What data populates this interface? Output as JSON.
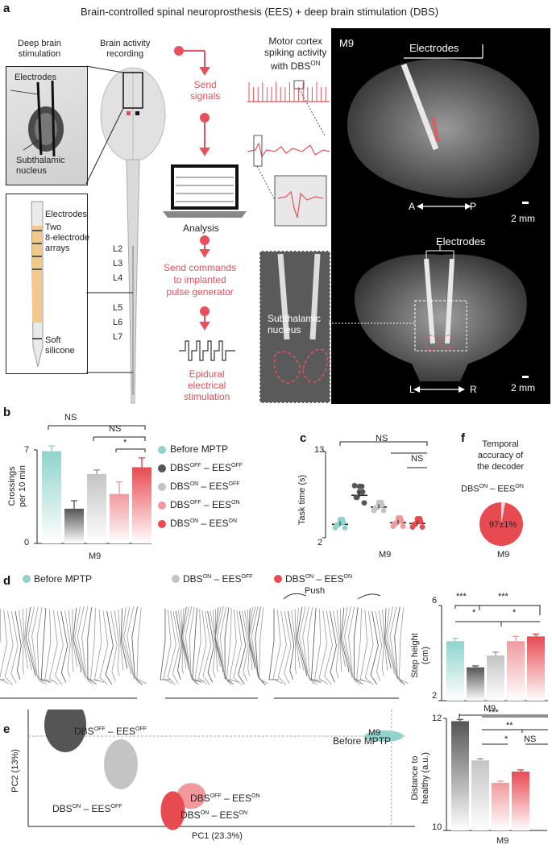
{
  "title": "Brain-controlled spinal neuroprosthesis (EES) + deep brain stimulation (DBS)",
  "panel_a": {
    "letter": "a",
    "dbs_title": [
      "Deep brain",
      "stimulation"
    ],
    "recording_title": [
      "Brain activity",
      "recording"
    ],
    "dbs_labels": {
      "electrodes": "Electrodes",
      "stn": [
        "Subthalamic",
        "nucleus"
      ]
    },
    "array_labels": {
      "electrodes": "Electrodes",
      "two_arrays": [
        "Two",
        "8-electrode",
        "arrays"
      ],
      "silicone": [
        "Soft",
        "silicone"
      ]
    },
    "spinal_levels": [
      "L2",
      "L3",
      "L4",
      "L5",
      "L6",
      "L7"
    ],
    "flow": {
      "send_signals": [
        "Send",
        "signals"
      ],
      "analysis": "Analysis",
      "send_commands": [
        "Send commands",
        "to implanted",
        "pulse generator"
      ],
      "epidural": [
        "Epidural",
        "electrical",
        "stimulation"
      ]
    },
    "spiking_title": [
      "Motor cortex",
      "spiking activity",
      "with DBS"
    ],
    "spiking_sup": "ON",
    "mri": {
      "monkey": "M9",
      "electrodes_top": "Electrodes",
      "ap_a": "A",
      "ap_p": "P",
      "scale_top": "2 mm",
      "electrodes_bottom": "Electrodes",
      "stn_zoom": [
        "Subthalamic",
        "nucleus"
      ],
      "lr_l": "L",
      "lr_r": "R",
      "scale_bottom": "2 mm"
    }
  },
  "panel_b": {
    "letter": "b",
    "ylabel": [
      "Crossings",
      "per 10 min"
    ],
    "yticks": [
      "7",
      "0"
    ],
    "xlabel": "M9",
    "sig": [
      "NS",
      "NS",
      "*"
    ],
    "legend": [
      {
        "pre": "Before MPTP",
        "color": "#8fd3cc"
      },
      {
        "pre": "DBS",
        "s1": "OFF",
        "mid": " – EES",
        "s2": "OFF",
        "color": "#555555"
      },
      {
        "pre": "DBS",
        "s1": "ON",
        "mid": " – EES",
        "s2": "OFF",
        "color": "#c4c4c4"
      },
      {
        "pre": "DBS",
        "s1": "OFF",
        "mid": " – EES",
        "s2": "ON",
        "color": "#f09a9e"
      },
      {
        "pre": "DBS",
        "s1": "ON",
        "mid": " – EES",
        "s2": "ON",
        "color": "#e84a52"
      }
    ]
  },
  "panel_c": {
    "letter": "c",
    "ylabel": "Task time (s)",
    "yticks": [
      "13",
      "2"
    ],
    "xlabel": "M9",
    "sig": [
      "NS",
      "NS"
    ]
  },
  "panel_f": {
    "letter": "f",
    "title": [
      "Temporal",
      "accuracy of",
      "the decoder"
    ],
    "cond": {
      "pre": "DBS",
      "s1": "ON",
      "mid": " – EES",
      "s2": "ON"
    },
    "value_text": "97±1%",
    "xlabel": "M9"
  },
  "panel_d": {
    "letter": "d",
    "legend1": "Before MPTP",
    "legend2": {
      "pre": "DBS",
      "s1": "ON",
      "mid": " – EES",
      "s2": "OFF"
    },
    "legend3": {
      "pre": "DBS",
      "s1": "ON",
      "mid": " – EES",
      "s2": "ON"
    },
    "push": "Push",
    "ylabel": [
      "Step height",
      "(cm)"
    ],
    "yticks": [
      "6",
      "2"
    ],
    "xlabel": "M9",
    "sig": [
      "***",
      "***",
      "*",
      "*"
    ]
  },
  "panel_e": {
    "letter": "e",
    "monkey": "M9",
    "xlabel": "PC1 (23.3%)",
    "ylabel": "PC2 (13%)",
    "labels": {
      "offoff": {
        "pre": "DBS",
        "s1": "OFF",
        "mid": " – EES",
        "s2": "OFF"
      },
      "before": "Before MPTP",
      "onoff": {
        "pre": "DBS",
        "s1": "ON",
        "mid": " – EES",
        "s2": "OFF"
      },
      "offon": {
        "pre": "DBS",
        "s1": "OFF",
        "mid": " – EES",
        "s2": "ON"
      },
      "onon": {
        "pre": "DBS",
        "s1": "ON",
        "mid": " – EES",
        "s2": "ON"
      }
    },
    "dist_ylabel": [
      "Distance to",
      "healthy (a.u.)"
    ],
    "dist_yticks": [
      "12",
      "10"
    ],
    "dist_xlabel": "M9",
    "sig": [
      "***",
      "**",
      "*",
      "NS"
    ]
  },
  "chart_data": [
    {
      "type": "bar",
      "panel": "b",
      "categories": [
        "Before MPTP",
        "DBS OFF – EES OFF",
        "DBS ON – EES OFF",
        "DBS OFF – EES ON",
        "DBS ON – EES ON"
      ],
      "values": [
        6.9,
        2.6,
        5.2,
        3.7,
        5.7
      ],
      "errors": [
        0.4,
        0.6,
        0.3,
        0.9,
        0.7
      ],
      "ylabel": "Crossings per 10 min",
      "ylim": [
        0,
        7
      ]
    },
    {
      "type": "bar",
      "panel": "c",
      "categories": [
        "Before MPTP",
        "DBS OFF – EES OFF",
        "DBS ON – EES OFF",
        "DBS OFF – EES ON",
        "DBS ON – EES ON"
      ],
      "values": [
        3.8,
        7.5,
        6.0,
        4.0,
        3.9
      ],
      "errors": [
        0.3,
        0.4,
        0.3,
        0.3,
        0.3
      ],
      "ylabel": "Task time (s)",
      "ylim": [
        2,
        13
      ]
    },
    {
      "type": "pie",
      "panel": "f",
      "categories": [
        "Correct",
        "Incorrect"
      ],
      "values": [
        97,
        3
      ]
    },
    {
      "type": "bar",
      "panel": "d",
      "categories": [
        "Before MPTP",
        "DBS OFF – EES OFF",
        "DBS ON – EES OFF",
        "DBS OFF – EES ON",
        "DBS ON – EES ON"
      ],
      "values": [
        4.5,
        3.4,
        3.9,
        4.5,
        4.7
      ],
      "errors": [
        0.12,
        0.06,
        0.14,
        0.2,
        0.1
      ],
      "ylabel": "Step height (cm)",
      "ylim": [
        2,
        6
      ]
    },
    {
      "type": "scatter",
      "panel": "e",
      "xlabel": "PC1 (23.3%)",
      "ylabel": "PC2 (13%)",
      "points": [
        {
          "x": 0.1,
          "y": 0.9,
          "label": "DBS OFF – EES OFF"
        },
        {
          "x": 0.25,
          "y": 0.55,
          "label": "DBS ON – EES OFF"
        },
        {
          "x": 0.44,
          "y": 0.27,
          "label": "DBS OFF – EES ON"
        },
        {
          "x": 0.39,
          "y": 0.14,
          "label": "DBS ON – EES ON"
        },
        {
          "x": 0.96,
          "y": 0.8,
          "label": "Before MPTP"
        }
      ]
    },
    {
      "type": "bar",
      "panel": "e",
      "categories": [
        "DBS OFF – EES OFF",
        "DBS ON – EES OFF",
        "DBS OFF – EES ON",
        "DBS ON – EES ON"
      ],
      "values": [
        11.95,
        11.25,
        10.85,
        11.05
      ],
      "errors": [
        0.03,
        0.03,
        0.03,
        0.03
      ],
      "ylabel": "Distance to healthy (a.u.)",
      "ylim": [
        10,
        12
      ]
    }
  ]
}
